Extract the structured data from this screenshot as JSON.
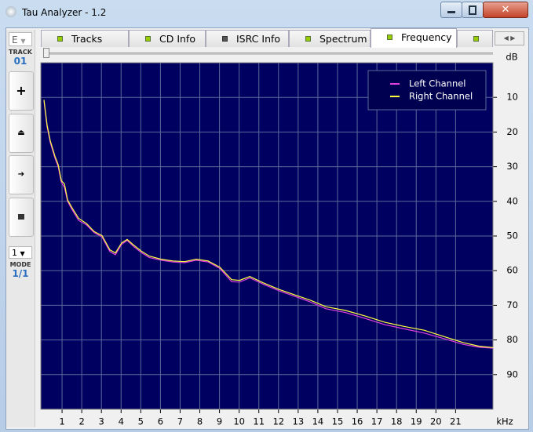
{
  "window": {
    "title": "Tau Analyzer - 1.2"
  },
  "sidebar": {
    "drive": "E",
    "track_label": "TRACK",
    "track": "01",
    "mode_select": "1",
    "mode_label": "MODE",
    "mode": "1/1"
  },
  "tabs": [
    "Tracks",
    "CD Info",
    "ISRC Info",
    "Spectrum",
    "Frequency"
  ],
  "active_tab": 4,
  "chart_data": {
    "type": "line",
    "y_reversed": true,
    "grid": true,
    "legend": "upper right",
    "ylabel": "dB",
    "xlabel": "kHz",
    "xlim": [
      -0.08,
      22.9
    ],
    "xticks": [
      1,
      2,
      3,
      4,
      5,
      6,
      7,
      8,
      9,
      10,
      11,
      12,
      13,
      14,
      15,
      16,
      17,
      18,
      19,
      20,
      21
    ],
    "ylim": [
      0,
      100
    ],
    "yticks": [
      10,
      20,
      30,
      40,
      50,
      60,
      70,
      80,
      90
    ],
    "x": [
      0.08,
      0.24,
      0.4,
      0.64,
      0.8,
      0.96,
      1.12,
      1.28,
      1.52,
      1.84,
      2.24,
      2.63,
      3.03,
      3.43,
      3.71,
      4.03,
      4.31,
      4.63,
      5.03,
      5.43,
      6.03,
      6.63,
      7.23,
      7.82,
      8.42,
      9.02,
      9.62,
      10.02,
      10.54,
      11.22,
      12.02,
      12.82,
      13.61,
      14.41,
      15.41,
      16.41,
      17.41,
      18.4,
      19.4,
      20.4,
      21.4,
      22.2,
      22.91
    ],
    "series": [
      {
        "name": "Left Channel",
        "color": "#e040e0",
        "values": [
          11,
          18.5,
          23,
          27.5,
          30,
          34.5,
          36,
          40,
          42.5,
          45.5,
          46.8,
          49,
          50.3,
          54.5,
          55.4,
          52.4,
          51.3,
          53,
          54.8,
          56.2,
          57,
          57.5,
          57.7,
          57,
          57.5,
          59.4,
          63.2,
          63.3,
          62.1,
          63.9,
          65.8,
          67.4,
          69,
          71,
          72.1,
          73.8,
          75.6,
          76.8,
          78,
          79.6,
          81.3,
          82.1,
          82.4
        ]
      },
      {
        "name": "Right Channel",
        "color": "#ffff40",
        "values": [
          10.7,
          18,
          22.5,
          27,
          29.4,
          34,
          35,
          39.6,
          42,
          44.9,
          46.4,
          48.7,
          49.9,
          54,
          54.9,
          52,
          51,
          52.6,
          54.4,
          55.8,
          56.7,
          57.2,
          57.4,
          56.7,
          57.2,
          59,
          62.6,
          62.8,
          61.7,
          63.5,
          65.4,
          67,
          68.5,
          70.4,
          71.5,
          73.1,
          74.9,
          76.1,
          77.2,
          79,
          80.8,
          81.8,
          82.2
        ]
      }
    ]
  }
}
